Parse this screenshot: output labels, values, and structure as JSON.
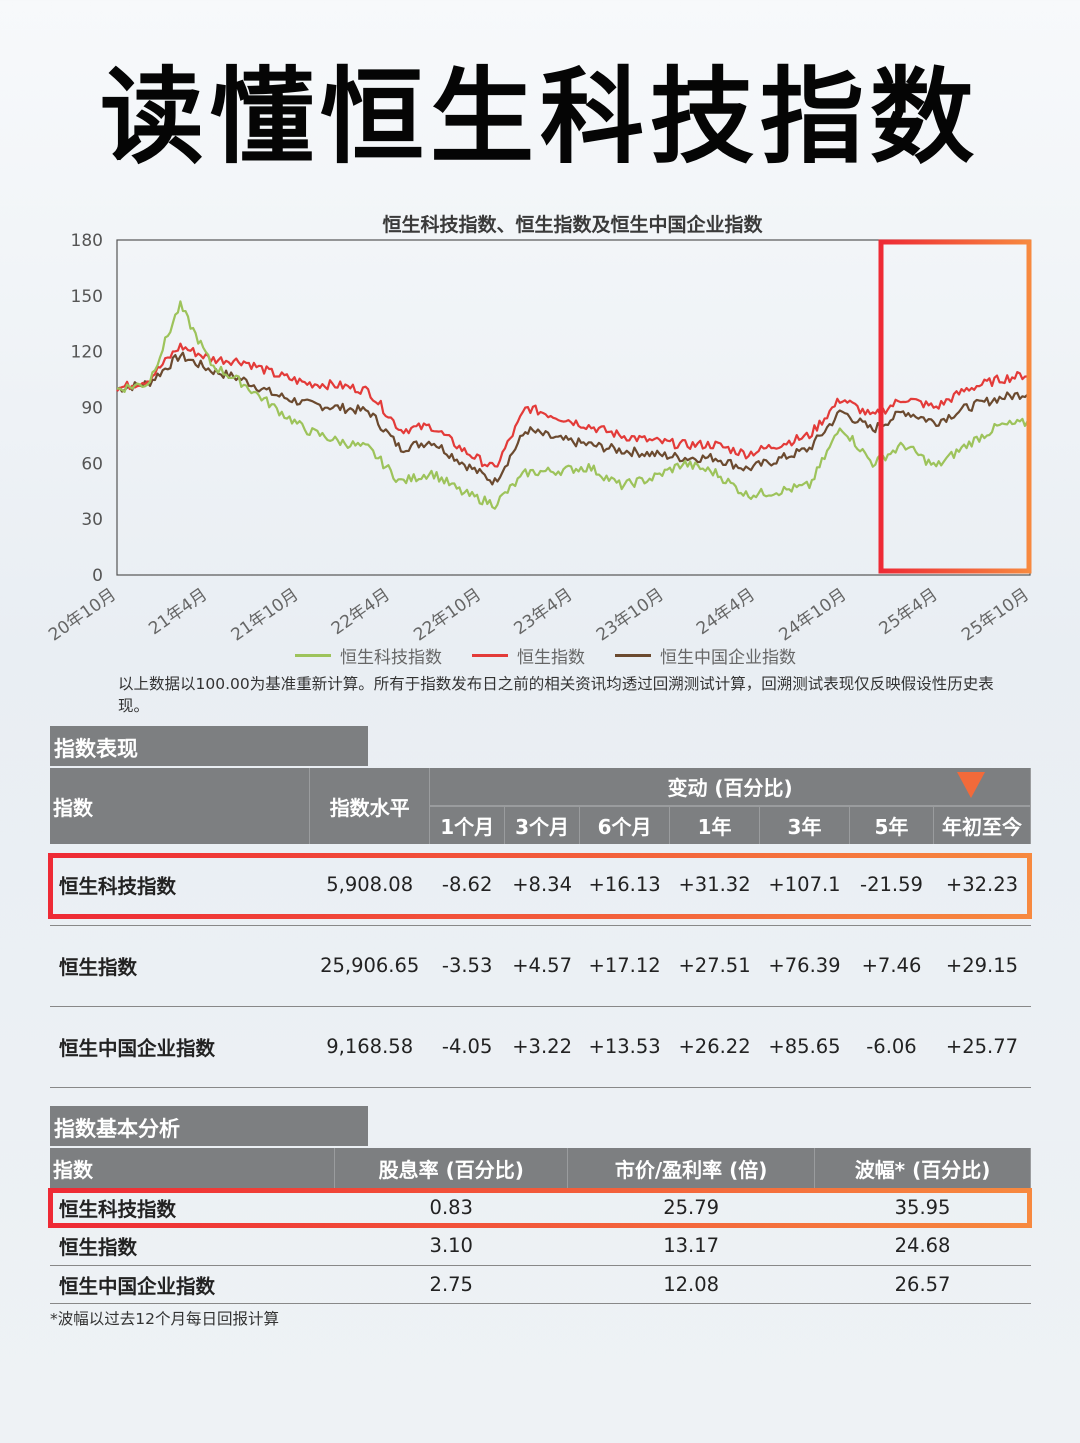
{
  "page_title": "读懂恒生科技指数",
  "chart_data": {
    "type": "line",
    "title": "恒生科技指数、恒生指数及恒生中国企业指数",
    "xlabel": "",
    "ylabel": "",
    "ylim": [
      0,
      180
    ],
    "yticks": [
      "0",
      "30",
      "60",
      "90",
      "120",
      "150",
      "180"
    ],
    "x_tick_labels": [
      "20年10月",
      "21年4月",
      "21年10月",
      "22年4月",
      "22年10月",
      "23年4月",
      "23年10月",
      "24年4月",
      "24年10月",
      "25年4月",
      "25年10月"
    ],
    "grid": false,
    "legend_placement": "bottom",
    "series": [
      {
        "name": "恒生科技指数",
        "color": "#9dc35b",
        "values": [
          100,
          103,
          145,
          113,
          103,
          90,
          78,
          72,
          68,
          50,
          55,
          44,
          38,
          55,
          56,
          58,
          48,
          52,
          60,
          55,
          43,
          45,
          48,
          80,
          60,
          70,
          58,
          70,
          80,
          82
        ]
      },
      {
        "name": "恒生指数",
        "color": "#e33b39",
        "values": [
          100,
          105,
          123,
          116,
          115,
          108,
          103,
          102,
          99,
          78,
          80,
          67,
          57,
          90,
          85,
          80,
          75,
          72,
          70,
          70,
          65,
          70,
          75,
          95,
          85,
          95,
          90,
          100,
          105,
          108
        ]
      },
      {
        "name": "恒生中国企业指数",
        "color": "#6b4a2f",
        "values": [
          100,
          103,
          118,
          110,
          105,
          97,
          92,
          90,
          88,
          68,
          72,
          60,
          50,
          78,
          73,
          70,
          67,
          65,
          63,
          63,
          57,
          62,
          68,
          88,
          78,
          88,
          82,
          90,
          95,
          98
        ]
      }
    ]
  },
  "legend": {
    "tech": "恒生科技指数",
    "hsi": "恒生指数",
    "hscei": "恒生中国企业指数",
    "tech_color": "#9dc35b",
    "hsi_color": "#e33b39",
    "hscei_color": "#6b4a2f"
  },
  "chart_note": "以上数据以100.00为基准重新计算。所有于指数发布日之前的相关资讯均透过回溯测试计算，回溯测试表现仅反映假设性历史表现。",
  "performance": {
    "section": "指数表现",
    "headers": {
      "index": "指数",
      "level": "指数水平",
      "change_group": "变动 (百分比)",
      "periods": [
        "1个月",
        "3个月",
        "6个月",
        "1年",
        "3年",
        "5年",
        "年初至今"
      ]
    },
    "rows": [
      {
        "name": "恒生科技指数",
        "level": "5,908.08",
        "changes": [
          "-8.62",
          "+8.34",
          "+16.13",
          "+31.32",
          "+107.1",
          "-21.59",
          "+32.23"
        ]
      },
      {
        "name": "恒生指数",
        "level": "25,906.65",
        "changes": [
          "-3.53",
          "+4.57",
          "+17.12",
          "+27.51",
          "+76.39",
          "+7.46",
          "+29.15"
        ]
      },
      {
        "name": "恒生中国企业指数",
        "level": "9,168.58",
        "changes": [
          "-4.05",
          "+3.22",
          "+13.53",
          "+26.22",
          "+85.65",
          "-6.06",
          "+25.77"
        ]
      }
    ]
  },
  "fundamentals": {
    "section": "指数基本分析",
    "headers": [
      "指数",
      "股息率 (百分比)",
      "市价/盈利率 (倍)",
      "波幅* (百分比)"
    ],
    "rows": [
      {
        "name": "恒生科技指数",
        "dividend": "0.83",
        "pe": "25.79",
        "volatility": "35.95"
      },
      {
        "name": "恒生指数",
        "dividend": "3.10",
        "pe": "13.17",
        "volatility": "24.68"
      },
      {
        "name": "恒生中国企业指数",
        "dividend": "2.75",
        "pe": "12.08",
        "volatility": "26.57"
      }
    ],
    "note": "*波幅以过去12个月每日回报计算"
  },
  "highlight_color": "#ee2a35"
}
